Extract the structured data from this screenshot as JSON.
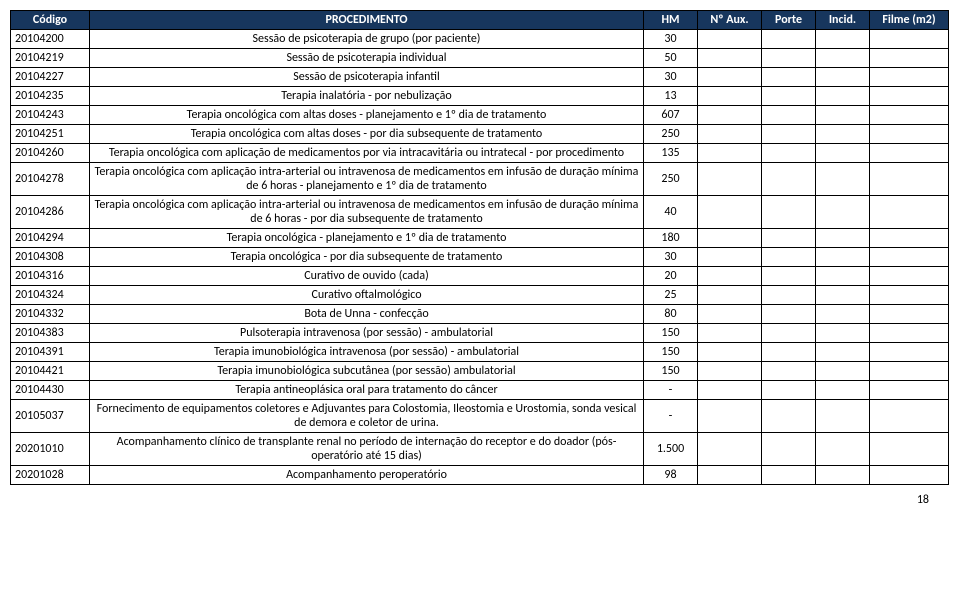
{
  "header": {
    "codigo": "Código",
    "procedimento": "PROCEDIMENTO",
    "hm": "HM",
    "aux": "Nº Aux.",
    "porte": "Porte",
    "incid": "Incid.",
    "filme": "Filme (m2)"
  },
  "rows": [
    {
      "codigo": "20104200",
      "proc": "Sessão de psicoterapia de grupo (por paciente)",
      "hm": "30",
      "aux": "",
      "porte": "",
      "incid": "",
      "filme": ""
    },
    {
      "codigo": "20104219",
      "proc": "Sessão de psicoterapia individual",
      "hm": "50",
      "aux": "",
      "porte": "",
      "incid": "",
      "filme": ""
    },
    {
      "codigo": "20104227",
      "proc": "Sessão de psicoterapia infantil",
      "hm": "30",
      "aux": "",
      "porte": "",
      "incid": "",
      "filme": ""
    },
    {
      "codigo": "20104235",
      "proc": "Terapia inalatória - por nebulização",
      "hm": "13",
      "aux": "",
      "porte": "",
      "incid": "",
      "filme": ""
    },
    {
      "codigo": "20104243",
      "proc": "Terapia oncológica com altas doses - planejamento e 1º dia de tratamento",
      "hm": "607",
      "aux": "",
      "porte": "",
      "incid": "",
      "filme": ""
    },
    {
      "codigo": "20104251",
      "proc": "Terapia oncológica com altas doses - por dia subsequente de tratamento",
      "hm": "250",
      "aux": "",
      "porte": "",
      "incid": "",
      "filme": ""
    },
    {
      "codigo": "20104260",
      "proc": "Terapia oncológica com aplicação de medicamentos por via intracavitária ou intratecal - por procedimento",
      "hm": "135",
      "aux": "",
      "porte": "",
      "incid": "",
      "filme": ""
    },
    {
      "codigo": "20104278",
      "proc": "Terapia oncológica com aplicação intra-arterial ou intravenosa de medicamentos em infusão de duração mínima de 6 horas - planejamento e 1º dia de tratamento",
      "hm": "250",
      "aux": "",
      "porte": "",
      "incid": "",
      "filme": ""
    },
    {
      "codigo": "20104286",
      "proc": "Terapia oncológica com aplicação intra-arterial ou intravenosa de medicamentos em infusão de duração mínima de 6 horas - por dia subsequente de tratamento",
      "hm": "40",
      "aux": "",
      "porte": "",
      "incid": "",
      "filme": ""
    },
    {
      "codigo": "20104294",
      "proc": "Terapia oncológica - planejamento e 1º dia de tratamento",
      "hm": "180",
      "aux": "",
      "porte": "",
      "incid": "",
      "filme": ""
    },
    {
      "codigo": "20104308",
      "proc": "Terapia oncológica - por dia subsequente de tratamento",
      "hm": "30",
      "aux": "",
      "porte": "",
      "incid": "",
      "filme": ""
    },
    {
      "codigo": "20104316",
      "proc": "Curativo de ouvido (cada)",
      "hm": "20",
      "aux": "",
      "porte": "",
      "incid": "",
      "filme": ""
    },
    {
      "codigo": "20104324",
      "proc": "Curativo oftalmológico",
      "hm": "25",
      "aux": "",
      "porte": "",
      "incid": "",
      "filme": ""
    },
    {
      "codigo": "20104332",
      "proc": "Bota de Unna - confecção",
      "hm": "80",
      "aux": "",
      "porte": "",
      "incid": "",
      "filme": ""
    },
    {
      "codigo": "20104383",
      "proc": "Pulsoterapia intravenosa (por sessão) - ambulatorial",
      "hm": "150",
      "aux": "",
      "porte": "",
      "incid": "",
      "filme": ""
    },
    {
      "codigo": "20104391",
      "proc": "Terapia imunobiológica intravenosa (por sessão) - ambulatorial",
      "hm": "150",
      "aux": "",
      "porte": "",
      "incid": "",
      "filme": ""
    },
    {
      "codigo": "20104421",
      "proc": "Terapia imunobiológica subcutânea (por sessão) ambulatorial",
      "hm": "150",
      "aux": "",
      "porte": "",
      "incid": "",
      "filme": ""
    },
    {
      "codigo": "20104430",
      "proc": "Terapia antineoplásica oral para tratamento do câncer",
      "hm": "-",
      "aux": "",
      "porte": "",
      "incid": "",
      "filme": ""
    },
    {
      "codigo": "20105037",
      "proc": "Fornecimento de equipamentos coletores e Adjuvantes para Colostomia, Ileostomia e Urostomia, sonda vesical de demora e coletor de urina.",
      "hm": "-",
      "aux": "",
      "porte": "",
      "incid": "",
      "filme": ""
    },
    {
      "codigo": "20201010",
      "proc": "Acompanhamento clínico de transplante renal no período de internação do receptor e do doador (pós-operatório até 15 dias)",
      "hm": "1.500",
      "aux": "",
      "porte": "",
      "incid": "",
      "filme": ""
    },
    {
      "codigo": "20201028",
      "proc": "Acompanhamento peroperatório",
      "hm": "98",
      "aux": "",
      "porte": "",
      "incid": "",
      "filme": ""
    }
  ],
  "page_number": "18"
}
